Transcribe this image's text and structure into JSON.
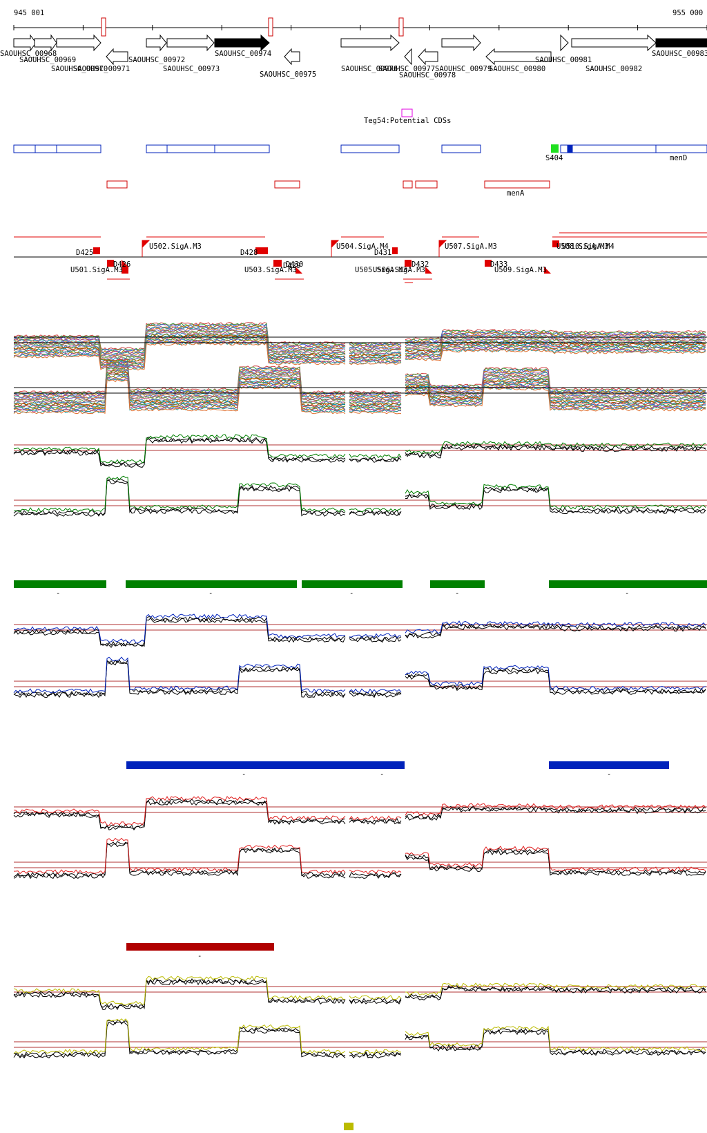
{
  "coords": {
    "start": "945 001",
    "end": "955 000"
  },
  "genes": [
    {
      "label": "SAOUHSC_00968"
    },
    {
      "label": "SAOUHSC_00969"
    },
    {
      "label": "SAOUHSC_00970"
    },
    {
      "label": "SAOUHSC_00971"
    },
    {
      "label": "SAOUHSC_00972"
    },
    {
      "label": "SAOUHSC_00973"
    },
    {
      "label": "SAOUHSC_00974"
    },
    {
      "label": "SAOUHSC_00975"
    },
    {
      "label": "SAOUHSC_00976"
    },
    {
      "label": "SAOUHSC_00977"
    },
    {
      "label": "SAOUHSC_00978"
    },
    {
      "label": "SAOUHSC_00979"
    },
    {
      "label": "SAOUHSC_00980"
    },
    {
      "label": "SAOUHSC_00981"
    },
    {
      "label": "SAOUHSC_00982"
    },
    {
      "label": "SAOUHSC_00983"
    }
  ],
  "potential_cds_label": "Teg54:Potential CDSs",
  "features": {
    "s_label": "S404",
    "blue_right_label": "menD",
    "red_label": "menA"
  },
  "promoters": {
    "top": [
      {
        "label": "D425"
      },
      {
        "label": "U502.SigA.M3"
      },
      {
        "label": "D428"
      },
      {
        "label": "D429"
      },
      {
        "label": "U504.SigA.M4"
      },
      {
        "label": "D431"
      },
      {
        "label": "U507.SigA.M3"
      },
      {
        "label": "U508.SigA.M3"
      },
      {
        "label": "U510.SigA.M4"
      }
    ],
    "bottom": [
      {
        "label": "U501.SigA.M3"
      },
      {
        "label": "D426"
      },
      {
        "label": "U503.SigA.M3"
      },
      {
        "label": "D430"
      },
      {
        "label": "U505.SigA.M3"
      },
      {
        "label": "U506.SigA.M3"
      },
      {
        "label": "D432"
      },
      {
        "label": "D433"
      },
      {
        "label": "U509.SigA.M3"
      }
    ]
  },
  "colors": {
    "green": "#008000",
    "blue": "#0022bb",
    "red": "#b00000",
    "yellow": "#bbbb00"
  },
  "segments": {
    "marker": "-"
  }
}
